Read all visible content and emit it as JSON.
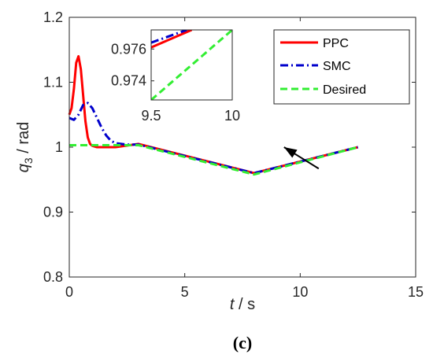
{
  "chart_data": {
    "type": "line",
    "xlabel_var": "t",
    "xlabel_unit": " / s",
    "ylabel_var": "q",
    "ylabel_sub": "3",
    "ylabel_unit": " / rad",
    "caption": "(c)",
    "xlim": [
      0,
      15
    ],
    "ylim": [
      0.8,
      1.2
    ],
    "xticks": [
      "0",
      "5",
      "10",
      "15"
    ],
    "yticks": [
      "0.8",
      "0.9",
      "1",
      "1.1",
      "1.2"
    ],
    "grid": false,
    "legend_position": "top-right",
    "series": [
      {
        "name": "PPC",
        "color": "#ff0000",
        "style": "solid",
        "x": [
          0,
          0.1,
          0.2,
          0.3,
          0.4,
          0.5,
          0.6,
          0.7,
          0.8,
          0.9,
          1.0,
          1.2,
          1.5,
          2,
          3,
          8,
          12.5
        ],
        "y": [
          1.05,
          1.06,
          1.09,
          1.13,
          1.14,
          1.12,
          1.08,
          1.04,
          1.015,
          1.005,
          1.002,
          1.0,
          1.0,
          1.0,
          1.005,
          0.96,
          1.0
        ]
      },
      {
        "name": "SMC",
        "color": "#0000cc",
        "style": "dashdot",
        "x": [
          0,
          0.2,
          0.4,
          0.6,
          0.8,
          1.0,
          1.2,
          1.4,
          1.6,
          1.8,
          2.0,
          2.5,
          3,
          8,
          12.5
        ],
        "y": [
          1.045,
          1.042,
          1.05,
          1.065,
          1.068,
          1.06,
          1.045,
          1.03,
          1.018,
          1.01,
          1.006,
          1.004,
          1.004,
          0.96,
          1.0
        ]
      },
      {
        "name": "Desired",
        "color": "#33ee33",
        "style": "dashed",
        "x": [
          0,
          3,
          8,
          12.5
        ],
        "y": [
          1.003,
          1.003,
          0.958,
          1.0
        ]
      }
    ],
    "inset": {
      "xlim": [
        9.5,
        10
      ],
      "ylim": [
        0.9728,
        0.9772
      ],
      "xticks": [
        "9.5",
        "10"
      ],
      "yticks": [
        "0.974",
        "0.976"
      ],
      "series": [
        {
          "name": "PPC",
          "color": "#ff0000",
          "style": "solid",
          "x": [
            9.5,
            9.75
          ],
          "y": [
            0.9761,
            0.9772
          ]
        },
        {
          "name": "SMC",
          "color": "#0000cc",
          "style": "dashdot",
          "x": [
            9.5,
            9.72
          ],
          "y": [
            0.9764,
            0.9772
          ]
        },
        {
          "name": "Desired",
          "color": "#33ee33",
          "style": "dashed",
          "x": [
            9.5,
            10
          ],
          "y": [
            0.9728,
            0.9772
          ]
        }
      ]
    },
    "annotation": {
      "type": "arrow",
      "from": [
        10.8,
        0.967
      ],
      "to": [
        9.3,
        1.0
      ]
    }
  }
}
